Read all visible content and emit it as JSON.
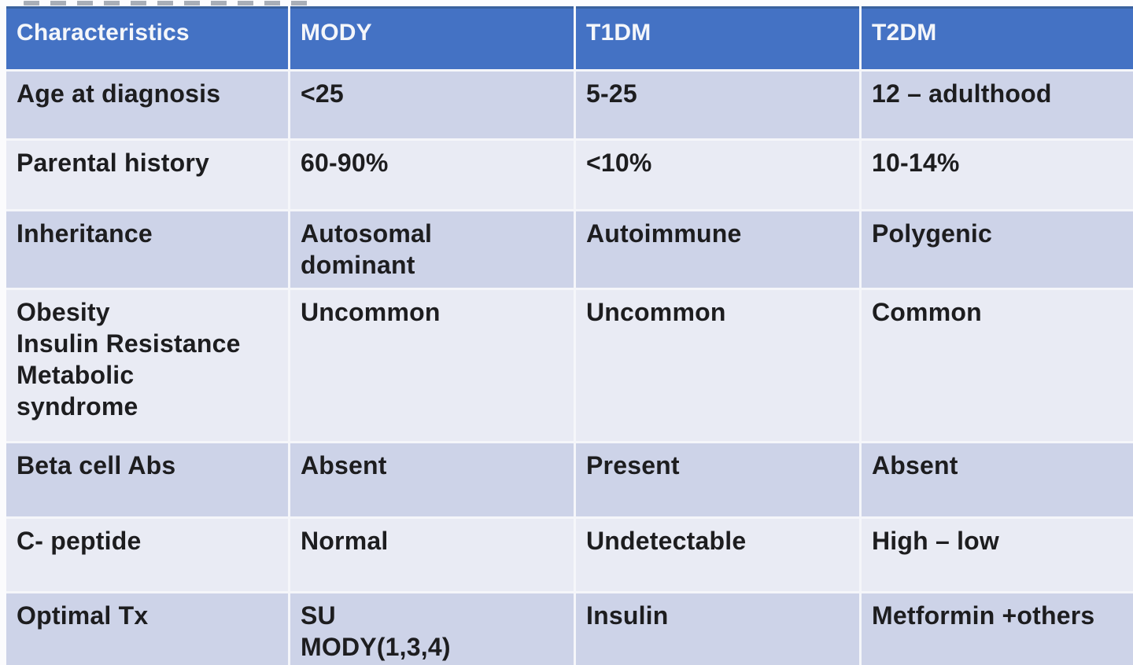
{
  "document": {
    "kind": "comparison-table-slide",
    "topic": "Diabetes types comparison (MODY vs T1DM vs T2DM)"
  },
  "colors": {
    "header_bg": "#4472c4",
    "header_top_border": "#39619e",
    "header_text": "#f4f6fa",
    "row_dark": "#cdd3e8",
    "row_light": "#e9ebf4",
    "divider": "#f5f6fa",
    "body_text": "#1d1d1f"
  },
  "table": {
    "header": [
      "Characteristics",
      "MODY",
      "T1DM",
      "T2DM"
    ],
    "rows": [
      [
        "Age at diagnosis",
        "<25",
        "5-25",
        "12 – adulthood"
      ],
      [
        "Parental history",
        "60-90%",
        "<10%",
        "10-14%"
      ],
      [
        "Inheritance",
        "Autosomal\ndominant",
        "Autoimmune",
        "Polygenic"
      ],
      [
        "Obesity\nInsulin Resistance\nMetabolic\nsyndrome",
        "Uncommon",
        "Uncommon",
        "Common"
      ],
      [
        "Beta cell Abs",
        "Absent",
        "Present",
        "Absent"
      ],
      [
        "C- peptide",
        "Normal",
        "Undetectable",
        "High – low"
      ],
      [
        "Optimal Tx",
        "SU\nMODY(1,3,4)",
        "Insulin",
        "Metformin +others"
      ]
    ]
  }
}
